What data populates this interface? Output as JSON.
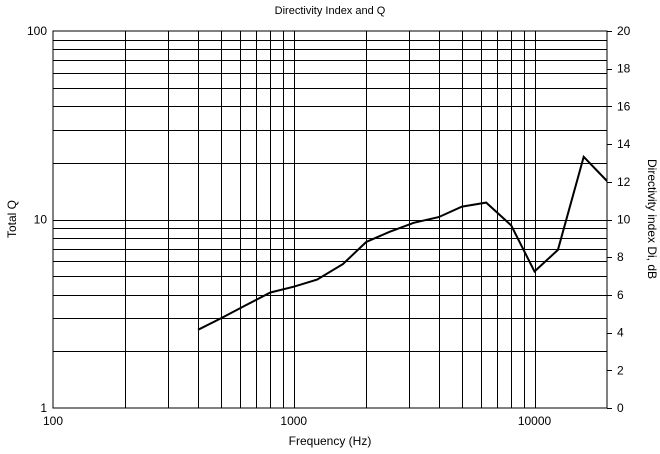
{
  "chart_data": {
    "type": "line",
    "title": "Directivity Index and Q",
    "xlabel": "Frequency (Hz)",
    "ylabel": "Total Q",
    "y2label": "Directivity index Di, dB",
    "x_scale": "log",
    "y_scale": "log",
    "xlim": [
      100,
      20000
    ],
    "ylim": [
      1,
      100
    ],
    "y2lim": [
      0,
      20
    ],
    "x_ticks": [
      100,
      1000,
      10000
    ],
    "x_tick_labels": [
      "100",
      "1000",
      "10000"
    ],
    "y_ticks": [
      1,
      10,
      100
    ],
    "y_tick_labels": [
      "1",
      "10",
      "100"
    ],
    "y2_ticks": [
      0,
      2,
      4,
      6,
      8,
      10,
      12,
      14,
      16,
      18,
      20
    ],
    "y2_tick_labels": [
      "0",
      "2",
      "4",
      "6",
      "8",
      "10",
      "12",
      "14",
      "16",
      "18",
      "20"
    ],
    "grid": true,
    "series": [
      {
        "name": "",
        "x": [
          400,
          500,
          630,
          800,
          1000,
          1250,
          1600,
          2000,
          2500,
          3150,
          4000,
          5000,
          6300,
          8000,
          10000,
          12500,
          16000,
          20000
        ],
        "y": [
          2.6,
          3.0,
          3.5,
          4.1,
          4.4,
          4.8,
          5.8,
          7.6,
          8.6,
          9.6,
          10.3,
          11.7,
          12.3,
          9.3,
          5.3,
          6.9,
          21.5,
          16.0
        ]
      }
    ]
  }
}
